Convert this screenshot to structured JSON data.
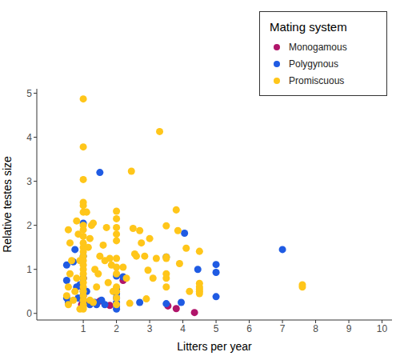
{
  "chart_data": {
    "type": "scatter",
    "x_label": "Litters per year",
    "y_label": "Relative testes size",
    "legend_title": "Mating system",
    "legend": "top-right",
    "grid": false,
    "marker": "circle",
    "xlim": [
      -0.4,
      10.3
    ],
    "xticks": [
      1,
      2,
      3,
      4,
      5,
      6,
      7,
      8,
      9,
      10
    ],
    "ylim": [
      -0.15,
      5.1
    ],
    "yticks": [
      0,
      1,
      2,
      3,
      4,
      5
    ],
    "series": [
      {
        "name": "Monogamous",
        "color": "#b0156a",
        "x": [
          1,
          1,
          1,
          1,
          0.95,
          1.1,
          1.5,
          1.8,
          2.2,
          3.55,
          3.8,
          4.35
        ],
        "values": [
          0.8,
          0.55,
          0.4,
          0.3,
          0.2,
          0.25,
          0.28,
          0.18,
          0.75,
          0.17,
          0.11,
          0.02
        ]
      },
      {
        "name": "Polygynous",
        "color": "#1f5be3",
        "x": [
          1.5,
          4.05,
          7.0,
          5.0,
          5.0,
          5.0,
          3.5,
          4.45,
          3.95,
          0.5,
          0.5,
          0.5,
          0.55,
          0.7,
          0.75,
          0.8,
          0.85,
          0.9,
          1,
          1,
          1,
          1,
          1,
          1.1,
          1.2,
          1.35,
          1.4,
          1.55,
          1.65,
          2,
          2,
          2,
          2,
          2,
          2,
          2,
          2.2,
          2.7,
          3.5
        ],
        "values": [
          3.2,
          1.82,
          1.45,
          1.11,
          0.93,
          0.38,
          1.28,
          1.0,
          0.25,
          1.1,
          0.75,
          0.35,
          0.25,
          1.17,
          1.45,
          0.6,
          0.35,
          0.65,
          1.3,
          0.8,
          0.5,
          0.25,
          2.05,
          0.5,
          0.2,
          0.25,
          0.2,
          0.3,
          0.2,
          0.85,
          0.55,
          0.45,
          0.35,
          0.25,
          0.17,
          0.1,
          0.83,
          0.25,
          0.22
        ]
      },
      {
        "name": "Promiscuous",
        "color": "#ffc61a",
        "x": [
          1,
          1,
          1,
          1,
          1,
          1,
          1,
          1,
          1,
          1,
          1,
          1,
          1,
          1,
          1,
          1,
          1,
          1,
          1,
          1,
          1,
          1,
          1,
          1,
          1,
          1,
          0.55,
          0.6,
          0.65,
          0.6,
          0.55,
          0.7,
          0.8,
          0.85,
          0.9,
          0.75,
          0.5,
          0.55,
          0.9,
          0.8,
          1.1,
          1.15,
          1.2,
          1.25,
          1.3,
          1.35,
          1.4,
          1.2,
          1.5,
          1.45,
          1.3,
          1.6,
          1.65,
          1.7,
          1.75,
          1.8,
          1.9,
          1.85,
          2,
          2,
          2,
          2,
          2,
          2,
          2,
          2,
          2,
          2,
          2,
          2,
          2.2,
          2.3,
          2.45,
          2.5,
          2.55,
          2.6,
          2.4,
          2.7,
          2.75,
          2.85,
          2.9,
          2.95,
          3.3,
          3.0,
          3.2,
          3.1,
          3.5,
          3.5,
          3.5,
          3.5,
          3.5,
          3.5,
          3.8,
          3.85,
          3.9,
          4.1,
          4.2,
          4.5,
          4.5,
          4.5,
          4.5,
          4.5,
          4.5,
          7.6,
          7.6
        ],
        "values": [
          4.87,
          3.78,
          3.04,
          2.52,
          2.45,
          2.3,
          2.0,
          1.9,
          1.75,
          1.6,
          1.5,
          1.4,
          1.3,
          1.2,
          1.1,
          1.0,
          0.9,
          0.8,
          0.7,
          0.6,
          0.5,
          0.4,
          0.3,
          0.2,
          0.15,
          0.1,
          1.9,
          1.6,
          1.2,
          0.9,
          0.6,
          0.3,
          2.1,
          1.8,
          1.2,
          0.5,
          0.4,
          0.2,
          0.1,
          0.8,
          2.3,
          1.5,
          1.7,
          2.0,
          2.05,
          1.0,
          0.6,
          0.3,
          1.3,
          0.9,
          0.25,
          1.55,
          1.2,
          1.95,
          0.7,
          1.25,
          0.5,
          1.1,
          2.32,
          2.15,
          1.95,
          1.8,
          1.65,
          1.25,
          1.05,
          0.9,
          0.6,
          0.5,
          0.35,
          0.2,
          1.05,
          0.8,
          3.23,
          1.93,
          1.35,
          1.3,
          0.23,
          1.88,
          1.6,
          1.3,
          0.33,
          0.98,
          4.13,
          1.7,
          1.25,
          0.8,
          1.99,
          1.28,
          1.25,
          0.9,
          0.8,
          0.6,
          2.35,
          1.88,
          1.13,
          1.48,
          0.5,
          1.41,
          0.68,
          0.6,
          0.55,
          0.5,
          0.45,
          0.65,
          0.6
        ]
      }
    ]
  }
}
